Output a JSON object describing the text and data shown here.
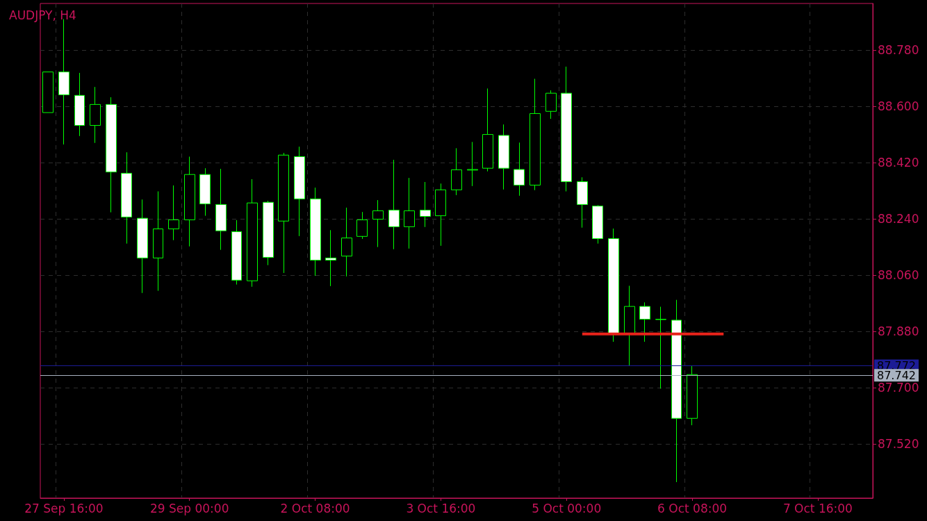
{
  "chart_data": {
    "type": "candlestick",
    "title": "AUDJPY, H4",
    "categories": [
      null,
      "27 Sep 16:00",
      null,
      null,
      null,
      null,
      null,
      null,
      null,
      "29 Sep 00:00",
      null,
      null,
      null,
      null,
      null,
      null,
      null,
      "2 Oct 08:00",
      null,
      null,
      null,
      null,
      null,
      null,
      null,
      "3 Oct 16:00",
      null,
      null,
      null,
      null,
      null,
      null,
      null,
      "5 Oct 00:00",
      null,
      null,
      null,
      null,
      null,
      null,
      null,
      "6 Oct 08:00",
      null,
      null,
      null,
      null,
      null,
      null,
      null,
      "7 Oct 16:00",
      null,
      null,
      null
    ],
    "color": "#00ff00",
    "ohlc": [
      [
        88.58,
        88.71,
        88.58,
        88.71
      ],
      [
        88.71,
        88.879,
        88.478,
        88.637
      ],
      [
        88.635,
        88.707,
        88.505,
        88.539
      ],
      [
        88.539,
        88.662,
        88.483,
        88.606
      ],
      [
        88.606,
        88.629,
        88.261,
        88.39
      ],
      [
        88.386,
        88.453,
        88.161,
        88.246
      ],
      [
        88.242,
        88.302,
        88.003,
        88.115
      ],
      [
        88.115,
        88.328,
        88.01,
        88.208
      ],
      [
        88.208,
        88.347,
        88.172,
        88.237
      ],
      [
        88.237,
        88.439,
        88.152,
        88.382
      ],
      [
        88.382,
        88.402,
        88.25,
        88.288
      ],
      [
        88.286,
        88.4,
        88.141,
        88.202
      ],
      [
        88.199,
        88.236,
        88.03,
        88.044
      ],
      [
        88.042,
        88.367,
        88.023,
        88.291
      ],
      [
        88.293,
        88.298,
        88.092,
        88.117
      ],
      [
        88.233,
        88.451,
        88.067,
        88.444
      ],
      [
        88.439,
        88.471,
        88.185,
        88.304
      ],
      [
        88.304,
        88.34,
        88.058,
        88.108
      ],
      [
        88.115,
        88.204,
        88.025,
        88.108
      ],
      [
        88.121,
        88.276,
        88.056,
        88.179
      ],
      [
        88.184,
        88.262,
        88.176,
        88.237
      ],
      [
        88.239,
        88.3,
        88.15,
        88.266
      ],
      [
        88.268,
        88.429,
        88.143,
        88.215
      ],
      [
        88.215,
        88.371,
        88.145,
        88.266
      ],
      [
        88.268,
        88.358,
        88.214,
        88.248
      ],
      [
        88.25,
        88.353,
        88.154,
        88.333
      ],
      [
        88.333,
        88.466,
        88.316,
        88.397
      ],
      [
        88.396,
        88.486,
        88.345,
        88.398
      ],
      [
        88.402,
        88.657,
        88.392,
        88.51
      ],
      [
        88.507,
        88.542,
        88.334,
        88.402
      ],
      [
        88.398,
        88.484,
        88.314,
        88.348
      ],
      [
        88.348,
        88.688,
        88.332,
        88.577
      ],
      [
        88.584,
        88.651,
        88.56,
        88.642
      ],
      [
        88.642,
        88.727,
        88.328,
        88.359
      ],
      [
        88.359,
        88.373,
        88.212,
        88.286
      ],
      [
        88.281,
        88.284,
        88.161,
        88.177
      ],
      [
        88.177,
        88.209,
        87.847,
        87.873
      ],
      [
        87.873,
        88.026,
        87.77,
        87.96
      ],
      [
        87.96,
        87.973,
        87.847,
        87.919
      ],
      [
        87.918,
        87.959,
        87.697,
        87.919
      ],
      [
        87.916,
        87.981,
        87.398,
        87.602
      ],
      [
        87.602,
        87.769,
        87.58,
        87.742
      ],
      null,
      null,
      null,
      null,
      null,
      null,
      null,
      null,
      null,
      null,
      null
    ],
    "series": [
      {
        "type": "line",
        "color": "#e8231a",
        "values": [
          null,
          null,
          null,
          null,
          null,
          null,
          null,
          null,
          null,
          null,
          null,
          null,
          null,
          null,
          null,
          null,
          null,
          null,
          null,
          null,
          null,
          null,
          null,
          null,
          null,
          null,
          null,
          null,
          null,
          null,
          null,
          null,
          null,
          null,
          87.872,
          87.872,
          87.872,
          87.872,
          87.872,
          87.872,
          87.872,
          87.872,
          87.872,
          87.872,
          null,
          null,
          null,
          null,
          null,
          null,
          null,
          null,
          null
        ]
      }
    ],
    "ylim": [
      87.347,
      88.929
    ],
    "yticks": [
      {
        "value": 87.52,
        "label": "87.520"
      },
      {
        "value": 87.7,
        "label": "87.700"
      },
      {
        "value": 87.88,
        "label": "87.880"
      },
      {
        "value": 88.06,
        "label": "88.060"
      },
      {
        "value": 88.24,
        "label": "88.240"
      },
      {
        "value": 88.42,
        "label": "88.420"
      },
      {
        "value": 88.6,
        "label": "88.600"
      },
      {
        "value": 88.78,
        "label": "88.780"
      }
    ],
    "ref_lines": [
      {
        "axis": "y",
        "value": 87.772,
        "label": "87.772",
        "color": "#1c1c96"
      },
      {
        "axis": "y",
        "value": 87.742,
        "label": "87.742",
        "color": "#a9b3c1"
      }
    ],
    "grid": true
  }
}
